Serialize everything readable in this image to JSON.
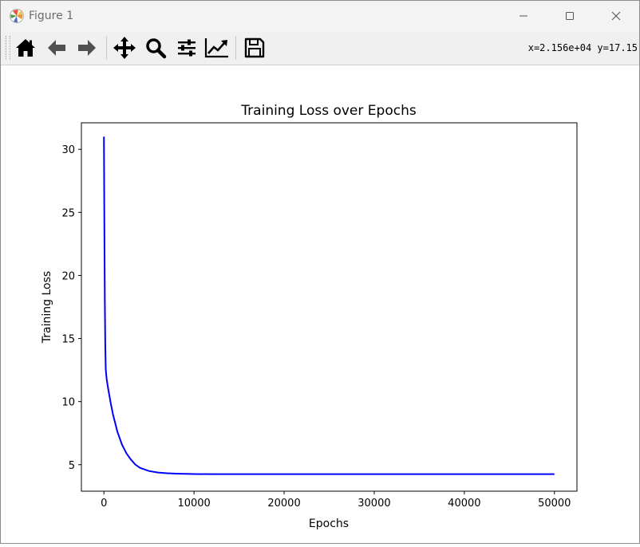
{
  "window": {
    "title": "Figure 1",
    "app_icon": "matplotlib-icon",
    "controls": {
      "minimize_icon": "minimize-icon",
      "maximize_icon": "maximize-icon",
      "close_icon": "close-icon"
    }
  },
  "toolbar": {
    "buttons": [
      {
        "name": "home-button",
        "icon": "home-icon"
      },
      {
        "name": "back-button",
        "icon": "arrow-left-icon"
      },
      {
        "name": "forward-button",
        "icon": "arrow-right-icon"
      },
      {
        "name": "pan-button",
        "icon": "move-icon"
      },
      {
        "name": "zoom-button",
        "icon": "magnifier-icon"
      },
      {
        "name": "configure-subplots-button",
        "icon": "sliders-icon"
      },
      {
        "name": "edit-axis-button",
        "icon": "trend-chart-icon"
      },
      {
        "name": "save-button",
        "icon": "floppy-disk-icon"
      }
    ],
    "coordinates": "x=2.156e+04 y=17.15"
  },
  "chart_data": {
    "type": "line",
    "title": "Training Loss over Epochs",
    "xlabel": "Epochs",
    "ylabel": "Training Loss",
    "xlim": [
      -2500,
      52500
    ],
    "ylim": [
      2.9,
      32.1
    ],
    "xticks": [
      0,
      10000,
      20000,
      30000,
      40000,
      50000
    ],
    "xticklabels": [
      "0",
      "10000",
      "20000",
      "30000",
      "40000",
      "50000"
    ],
    "yticks": [
      5,
      10,
      15,
      20,
      25,
      30
    ],
    "yticklabels": [
      "5",
      "10",
      "15",
      "20",
      "25",
      "30"
    ],
    "grid": false,
    "series": [
      {
        "color": "#0000ff",
        "x": [
          0,
          50,
          100,
          150,
          200,
          300,
          500,
          750,
          1000,
          1500,
          2000,
          2500,
          3000,
          3500,
          4000,
          5000,
          6000,
          7000,
          8000,
          10000,
          12000,
          15000,
          20000,
          30000,
          40000,
          50000
        ],
        "y": [
          31.0,
          24.0,
          18.0,
          14.5,
          12.6,
          11.8,
          10.9,
          9.9,
          9.0,
          7.6,
          6.6,
          5.9,
          5.4,
          5.0,
          4.75,
          4.5,
          4.38,
          4.32,
          4.29,
          4.26,
          4.25,
          4.25,
          4.25,
          4.25,
          4.25,
          4.25
        ]
      }
    ]
  }
}
